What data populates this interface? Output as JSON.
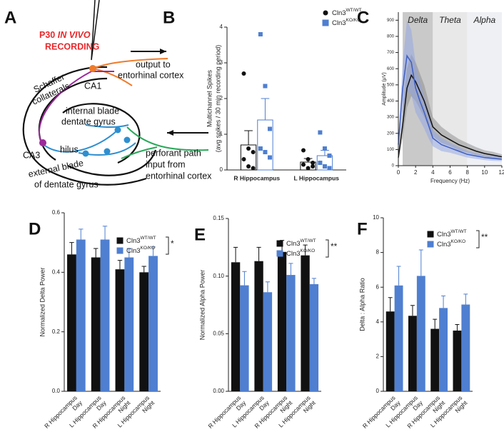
{
  "panel_letters": [
    "A",
    "B",
    "C",
    "D",
    "E",
    "F"
  ],
  "diagram": {
    "recording_label": [
      "P30 ",
      "IN VIVO",
      "RECORDING"
    ],
    "labels": [
      "output to",
      "entorhinal cortex",
      "Schaffer",
      "collaterals",
      "CA1",
      "internal blade",
      "dentate gyrus",
      "CA3",
      "hilus",
      "perforant path",
      "input from",
      "entorhinal cortex",
      "external blade",
      "of dentate gyrus"
    ]
  },
  "chart_data": [
    {
      "type": "bar",
      "ylabel": [
        "Multichannel Spikes",
        "(avg spikes / 30 min recording period)"
      ],
      "categories": [
        "R Hippocampus",
        "L Hippocampus"
      ],
      "bars_filled": false,
      "series": [
        {
          "name": "Cln3WT/WT",
          "color": "#111111",
          "marker": "circle",
          "values": [
            0.7,
            0.22
          ],
          "errors": [
            0.4,
            0.1
          ],
          "points": [
            [
              2.7,
              0.6,
              0.5,
              0.3,
              0.1,
              0.05
            ],
            [
              0.55,
              0.3,
              0.2,
              0.15,
              0.05,
              0.1
            ]
          ]
        },
        {
          "name": "Cln3KO/KO",
          "color": "#4f7fd0",
          "marker": "square",
          "values": [
            1.4,
            0.4
          ],
          "errors": [
            0.6,
            0.15
          ],
          "points": [
            [
              3.8,
              2.35,
              1.15,
              0.6,
              0.5,
              0.35
            ],
            [
              1.05,
              0.6,
              0.4,
              0.2,
              0.1,
              0.05
            ]
          ]
        }
      ],
      "ylim": [
        0,
        4
      ],
      "yticks": [
        0,
        1,
        2,
        3,
        4
      ]
    },
    {
      "type": "line",
      "xlabel": "Frequency (Hz)",
      "ylabel": "Amplitude (μV)",
      "bands": [
        {
          "label": "Delta",
          "range": [
            0.5,
            4
          ],
          "color": "#c9c9c9"
        },
        {
          "label": "Theta",
          "range": [
            4,
            8
          ],
          "color": "#e8e8e8"
        },
        {
          "label": "Alpha",
          "range": [
            8,
            12
          ],
          "color": "#eef0f4"
        }
      ],
      "x": [
        0,
        0.5,
        1,
        1.5,
        2,
        2.5,
        3,
        3.5,
        4,
        5,
        6,
        7,
        8,
        9,
        10,
        11,
        12
      ],
      "series": [
        {
          "name": "Cln3WT/WT",
          "color": "#111111",
          "band_color": "#8a8a8a",
          "values": [
            50,
            250,
            480,
            560,
            520,
            460,
            400,
            320,
            240,
            190,
            160,
            130,
            110,
            90,
            75,
            65,
            55
          ],
          "errors": [
            20,
            80,
            120,
            130,
            120,
            110,
            100,
            80,
            60,
            50,
            40,
            35,
            30,
            25,
            20,
            20,
            15
          ]
        },
        {
          "name": "Cln3KO/KO",
          "color": "#3f5fc0",
          "band_color": "#8fa3e6",
          "values": [
            130,
            480,
            680,
            640,
            480,
            400,
            330,
            250,
            170,
            130,
            110,
            90,
            70,
            60,
            50,
            45,
            40
          ],
          "errors": [
            40,
            150,
            220,
            200,
            150,
            120,
            100,
            80,
            50,
            40,
            30,
            25,
            20,
            18,
            15,
            15,
            12
          ]
        }
      ],
      "xlim": [
        0,
        12
      ],
      "xticks": [
        0,
        2,
        4,
        6,
        8,
        10,
        12
      ],
      "ylim": [
        0,
        950
      ],
      "yticks": [
        0,
        100,
        200,
        300,
        400,
        500,
        600,
        700,
        800,
        900
      ]
    },
    {
      "type": "bar",
      "ylabel": "Normalized Delta Power",
      "categories": [
        [
          "R Hippocampus",
          "Day"
        ],
        [
          "L Hippocampus",
          "Day"
        ],
        [
          "R Hippocampus",
          "Night"
        ],
        [
          "L Hippocampus",
          "Night"
        ]
      ],
      "bars_filled": true,
      "significance": "*",
      "series": [
        {
          "name": "Cln3WT/WT",
          "color": "#111111",
          "values": [
            0.46,
            0.45,
            0.41,
            0.4
          ],
          "errors": [
            0.04,
            0.03,
            0.03,
            0.02
          ]
        },
        {
          "name": "Cln3KO/KO",
          "color": "#4f7fd0",
          "values": [
            0.51,
            0.51,
            0.45,
            0.455
          ],
          "errors": [
            0.035,
            0.045,
            0.03,
            0.03
          ]
        }
      ],
      "ylim": [
        0,
        0.6
      ],
      "yticks": [
        {
          "value": 0,
          "label": "0.0"
        },
        0.2,
        0.4,
        0.6
      ]
    },
    {
      "type": "bar",
      "ylabel": "Normalized Alpha Power",
      "categories": [
        [
          "R Hippocampus",
          "Day"
        ],
        [
          "L Hippocampus",
          "Day"
        ],
        [
          "R Hippocampus",
          "Night"
        ],
        [
          "L Hippocampus",
          "Night"
        ]
      ],
      "bars_filled": true,
      "significance": "**",
      "series": [
        {
          "name": "Cln3WT/WT",
          "color": "#111111",
          "values": [
            0.112,
            0.113,
            0.121,
            0.118
          ],
          "errors": [
            0.013,
            0.012,
            0.01,
            0.009
          ]
        },
        {
          "name": "Cln3KO/KO",
          "color": "#4f7fd0",
          "values": [
            0.092,
            0.086,
            0.101,
            0.093
          ],
          "errors": [
            0.012,
            0.009,
            0.01,
            0.005
          ]
        }
      ],
      "ylim": [
        0,
        0.15
      ],
      "yticks": [
        {
          "value": 0,
          "label": "0.00"
        },
        0.05,
        {
          "value": 0.1,
          "label": "0.10"
        },
        0.15
      ]
    },
    {
      "type": "bar",
      "ylabel": "Delta : Alpha Ratio",
      "categories": [
        [
          "R Hippocampus",
          "Day"
        ],
        [
          "L Hippocampus",
          "Day"
        ],
        [
          "R Hippocampus",
          "Night"
        ],
        [
          "L Hippocampus",
          "Night"
        ]
      ],
      "bars_filled": true,
      "significance": "**",
      "series": [
        {
          "name": "Cln3WT/WT",
          "color": "#111111",
          "values": [
            4.6,
            4.35,
            3.6,
            3.5
          ],
          "errors": [
            0.8,
            0.6,
            0.55,
            0.35
          ]
        },
        {
          "name": "Cln3KO/KO",
          "color": "#4f7fd0",
          "values": [
            6.1,
            6.65,
            4.8,
            5.0
          ],
          "errors": [
            1.1,
            1.5,
            0.7,
            0.6
          ]
        }
      ],
      "ylim": [
        0,
        10
      ],
      "yticks": [
        0,
        2,
        4,
        6,
        8,
        10
      ]
    }
  ]
}
